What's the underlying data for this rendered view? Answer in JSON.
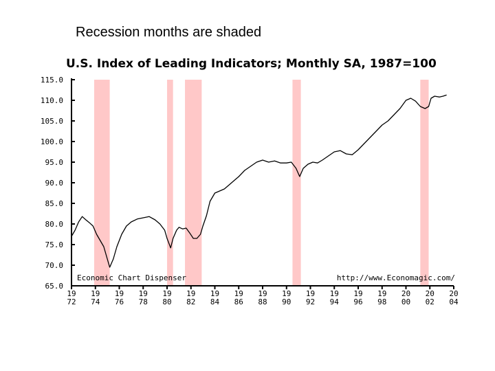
{
  "slide": {
    "title": "Recession months are shaded"
  },
  "chart_data": {
    "type": "line",
    "title": "U.S. Index of Leading Indicators; Monthly SA, 1987=100",
    "xlabel": "",
    "ylabel": "",
    "ylim": [
      65,
      115
    ],
    "xlim": [
      1972,
      2004
    ],
    "yticks": [
      "115.0",
      "110.0",
      "105.0",
      "100.0",
      "95.0",
      "90.0",
      "85.0",
      "80.0",
      "75.0",
      "70.0",
      "65.0"
    ],
    "xticks": [
      {
        "top": "19",
        "bottom": "72"
      },
      {
        "top": "19",
        "bottom": "74"
      },
      {
        "top": "19",
        "bottom": "76"
      },
      {
        "top": "19",
        "bottom": "78"
      },
      {
        "top": "19",
        "bottom": "80"
      },
      {
        "top": "19",
        "bottom": "82"
      },
      {
        "top": "19",
        "bottom": "84"
      },
      {
        "top": "19",
        "bottom": "86"
      },
      {
        "top": "19",
        "bottom": "88"
      },
      {
        "top": "19",
        "bottom": "90"
      },
      {
        "top": "19",
        "bottom": "92"
      },
      {
        "top": "19",
        "bottom": "94"
      },
      {
        "top": "19",
        "bottom": "96"
      },
      {
        "top": "19",
        "bottom": "98"
      },
      {
        "top": "20",
        "bottom": "00"
      },
      {
        "top": "20",
        "bottom": "02"
      },
      {
        "top": "20",
        "bottom": "04"
      }
    ],
    "recessions": [
      [
        1973.9,
        1975.2
      ],
      [
        1980.0,
        1980.5
      ],
      [
        1981.5,
        1982.9
      ],
      [
        1990.5,
        1991.2
      ],
      [
        2001.2,
        2001.9
      ]
    ],
    "annotations": {
      "left": "Economic Chart Dispenser",
      "right": "http://www.Economagic.com/"
    },
    "series": [
      {
        "x": [
          1972.0,
          1972.3,
          1972.6,
          1972.9,
          1973.2,
          1973.5,
          1973.8,
          1974.1,
          1974.4,
          1974.7,
          1975.0,
          1975.2,
          1975.5,
          1975.8,
          1976.2,
          1976.6,
          1977.0,
          1977.5,
          1978.0,
          1978.5,
          1979.0,
          1979.4,
          1979.8,
          1980.0,
          1980.3,
          1980.5,
          1980.8,
          1981.0,
          1981.3,
          1981.6,
          1981.9,
          1982.2,
          1982.5,
          1982.8,
          1983.0,
          1983.3,
          1983.6,
          1984.0,
          1984.4,
          1984.8,
          1985.2,
          1985.6,
          1986.0,
          1986.5,
          1987.0,
          1987.5,
          1988.0,
          1988.5,
          1989.0,
          1989.5,
          1990.0,
          1990.4,
          1990.8,
          1991.1,
          1991.4,
          1991.8,
          1992.2,
          1992.6,
          1993.0,
          1993.5,
          1994.0,
          1994.5,
          1995.0,
          1995.5,
          1996.0,
          1996.5,
          1997.0,
          1997.5,
          1998.0,
          1998.5,
          1999.0,
          1999.5,
          2000.0,
          2000.4,
          2000.8,
          2001.2,
          2001.6,
          2001.9,
          2002.1,
          2002.4,
          2002.8,
          2003.1,
          2003.4
        ],
        "y": [
          77.0,
          78.5,
          80.5,
          81.8,
          81.0,
          80.3,
          79.5,
          77.5,
          76.0,
          74.5,
          71.5,
          69.5,
          71.5,
          74.5,
          77.5,
          79.5,
          80.5,
          81.2,
          81.5,
          81.8,
          81.0,
          80.0,
          78.5,
          76.5,
          74.2,
          76.5,
          78.5,
          79.2,
          78.8,
          79.0,
          77.8,
          76.5,
          76.5,
          77.5,
          79.5,
          82.0,
          85.5,
          87.5,
          88.0,
          88.5,
          89.5,
          90.5,
          91.5,
          93.0,
          94.0,
          95.0,
          95.5,
          95.0,
          95.3,
          94.8,
          94.8,
          95.0,
          93.5,
          91.5,
          93.5,
          94.5,
          95.0,
          94.8,
          95.5,
          96.5,
          97.5,
          97.8,
          97.0,
          96.8,
          98.0,
          99.5,
          101.0,
          102.5,
          104.0,
          105.0,
          106.5,
          108.0,
          110.0,
          110.5,
          109.8,
          108.5,
          108.0,
          108.5,
          110.5,
          111.0,
          110.8,
          111.0,
          111.3
        ]
      }
    ]
  }
}
